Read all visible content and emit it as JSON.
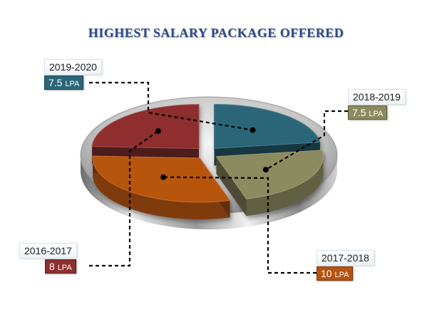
{
  "chart_data": {
    "type": "pie",
    "title": "HIGHEST SALARY PACKAGE OFFERED",
    "categories": [
      "2019-2020",
      "2018-2019",
      "2017-2018",
      "2016-2017"
    ],
    "values": [
      7.5,
      7.5,
      10,
      8
    ],
    "value_labels": [
      "7.5",
      "7.5",
      "10",
      "8"
    ],
    "unit": "LPA",
    "colors": [
      "#2b6678",
      "#8c8a5e",
      "#b75410",
      "#8e2f2f"
    ]
  }
}
